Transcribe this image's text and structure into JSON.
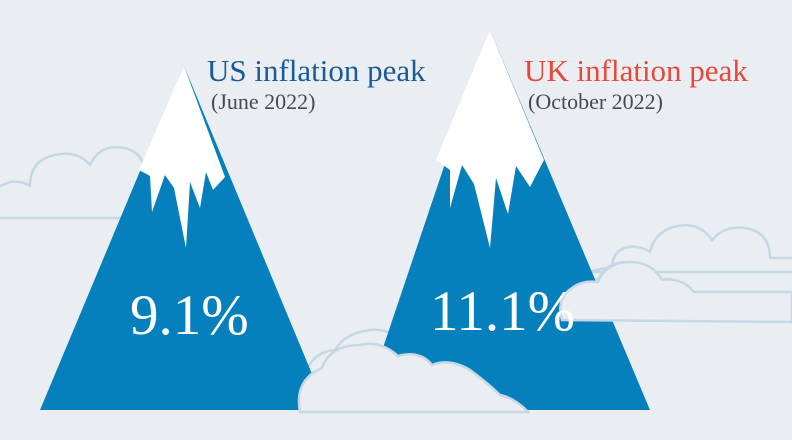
{
  "colors": {
    "background": "#eaeef2",
    "mountain": "#0680bd",
    "snow": "#ffffff",
    "cloud_outline": "#c6d8e4",
    "us_accent": "#1a5a96",
    "uk_accent": "#e8483a",
    "date_text": "#4a4a4a",
    "value_text": "#ffffff"
  },
  "peaks": {
    "us": {
      "title": "US inflation peak",
      "date": "(June 2022)",
      "value": "9.1%"
    },
    "uk": {
      "title": "UK inflation peak",
      "date": "(October 2022)",
      "value": "11.1%"
    }
  },
  "icons": [
    "cloud-icon",
    "mountain-icon",
    "snow-cap-icon"
  ]
}
